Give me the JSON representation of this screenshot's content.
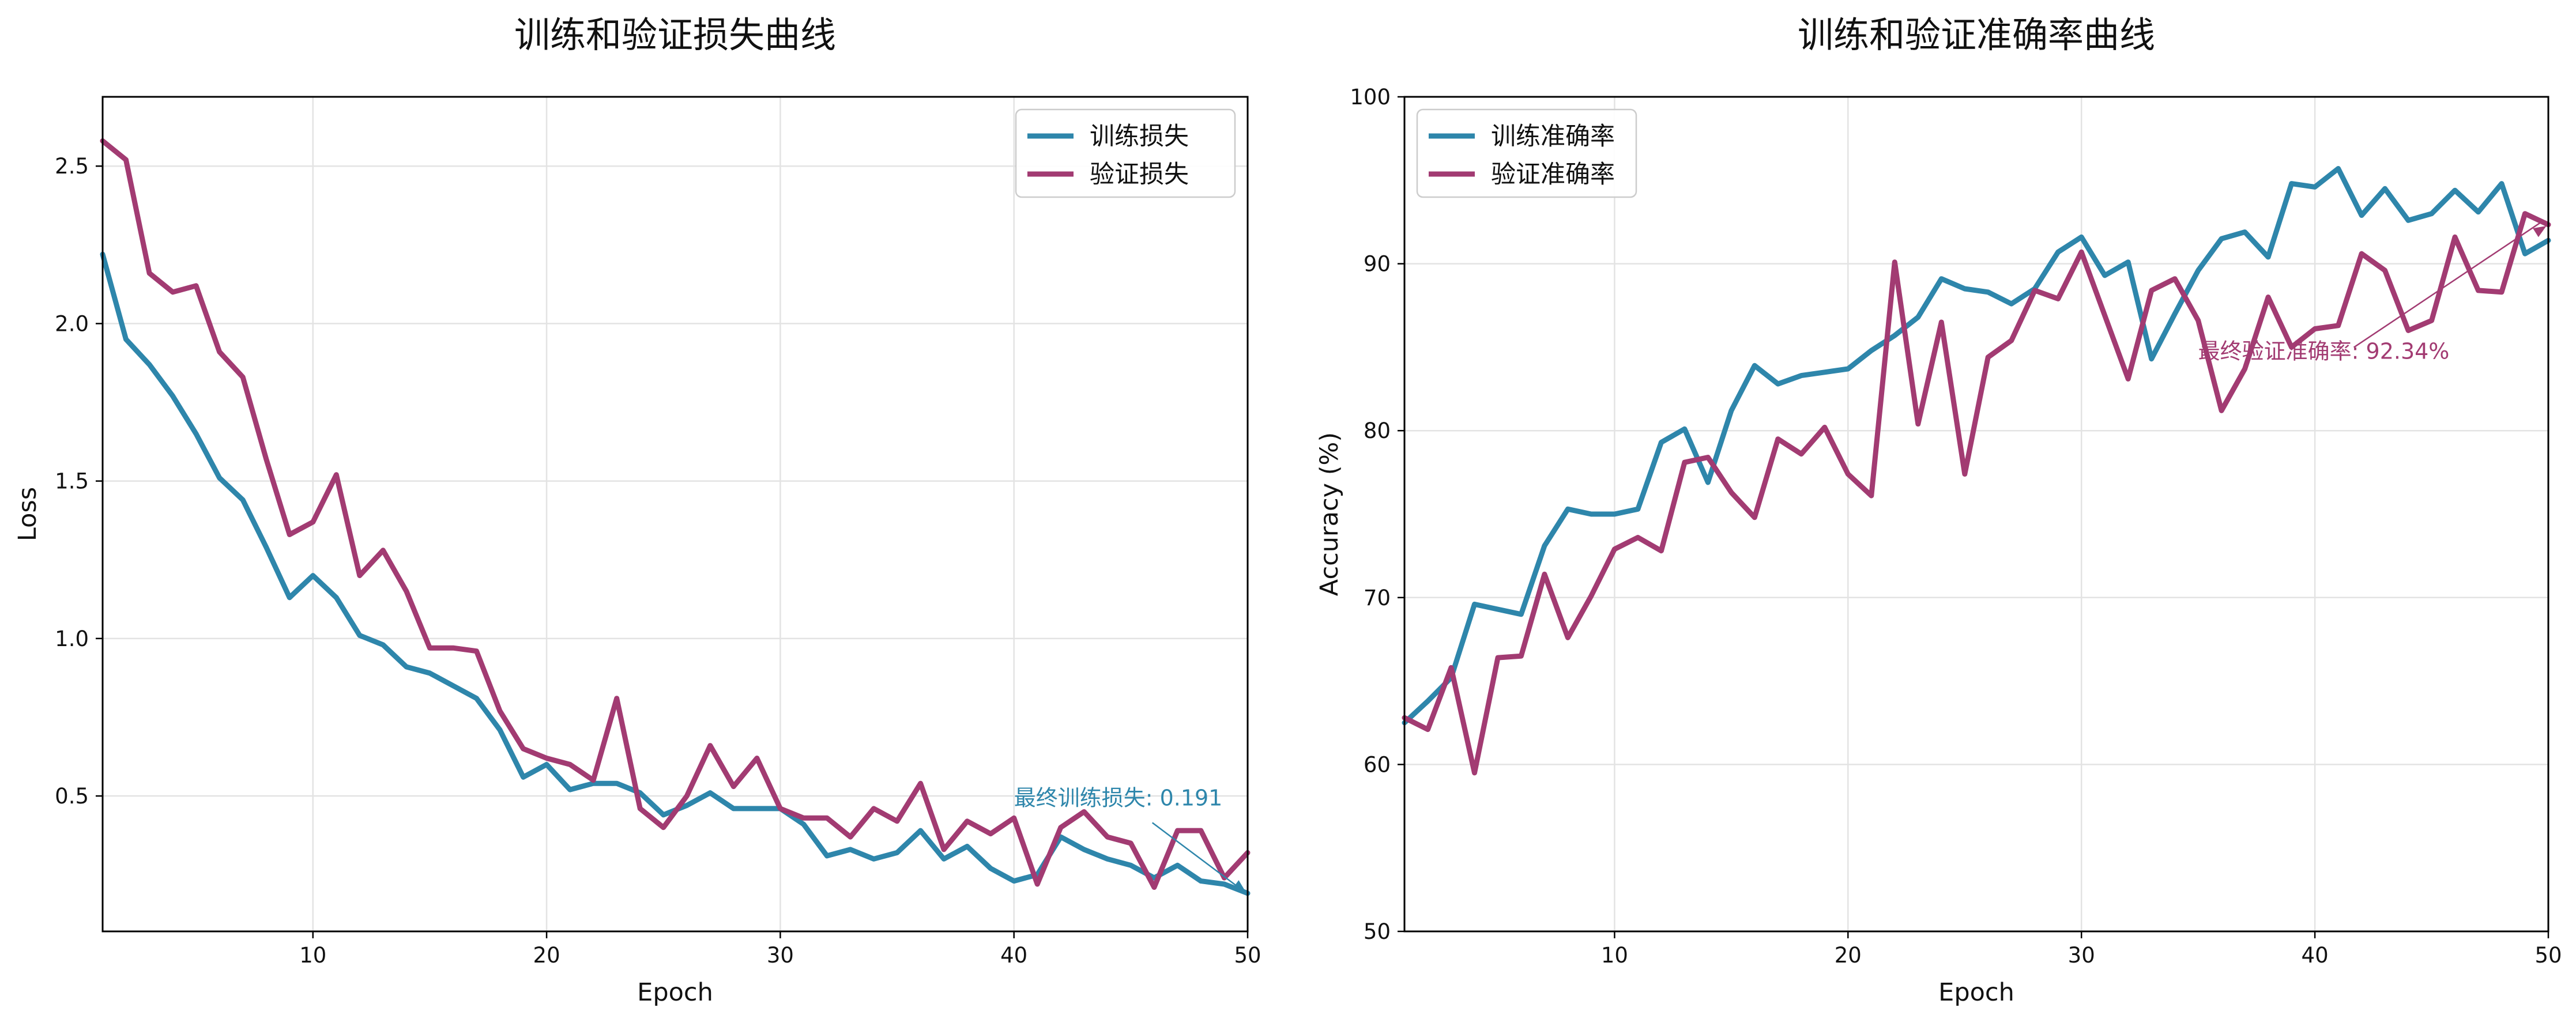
{
  "chart_data": [
    {
      "type": "line",
      "title": "训练和验证损失曲线",
      "xlabel": "Epoch",
      "ylabel": "Loss",
      "xlim": [
        1,
        50
      ],
      "ylim": [
        0.07,
        2.72
      ],
      "xticks": [
        10,
        20,
        30,
        40,
        50
      ],
      "yticks": [
        0.5,
        1.0,
        1.5,
        2.0,
        2.5
      ],
      "ytick_labels": [
        "0.5",
        "1.0",
        "1.5",
        "2.0",
        "2.5"
      ],
      "grid": true,
      "legend": "top-right",
      "x": [
        1,
        2,
        3,
        4,
        5,
        6,
        7,
        8,
        9,
        10,
        11,
        12,
        13,
        14,
        15,
        16,
        17,
        18,
        19,
        20,
        21,
        22,
        23,
        24,
        25,
        26,
        27,
        28,
        29,
        30,
        31,
        32,
        33,
        34,
        35,
        36,
        37,
        38,
        39,
        40,
        41,
        42,
        43,
        44,
        45,
        46,
        47,
        48,
        49,
        50
      ],
      "series": [
        {
          "name": "训练损失",
          "color": "#2e86ab",
          "values": [
            2.22,
            1.95,
            1.87,
            1.77,
            1.65,
            1.51,
            1.44,
            1.29,
            1.13,
            1.2,
            1.13,
            1.01,
            0.98,
            0.91,
            0.89,
            0.85,
            0.81,
            0.71,
            0.56,
            0.6,
            0.52,
            0.54,
            0.54,
            0.51,
            0.44,
            0.47,
            0.51,
            0.46,
            0.46,
            0.46,
            0.41,
            0.31,
            0.33,
            0.3,
            0.32,
            0.39,
            0.3,
            0.34,
            0.27,
            0.23,
            0.25,
            0.37,
            0.33,
            0.3,
            0.28,
            0.24,
            0.28,
            0.23,
            0.22,
            0.191
          ]
        },
        {
          "name": "验证损失",
          "color": "#a23b72",
          "values": [
            2.58,
            2.52,
            2.16,
            2.1,
            2.12,
            1.91,
            1.83,
            1.57,
            1.33,
            1.37,
            1.52,
            1.2,
            1.28,
            1.15,
            0.97,
            0.97,
            0.96,
            0.77,
            0.65,
            0.62,
            0.6,
            0.55,
            0.81,
            0.46,
            0.4,
            0.5,
            0.66,
            0.53,
            0.62,
            0.46,
            0.43,
            0.43,
            0.37,
            0.46,
            0.42,
            0.54,
            0.33,
            0.42,
            0.38,
            0.43,
            0.22,
            0.4,
            0.45,
            0.37,
            0.35,
            0.21,
            0.39,
            0.39,
            0.24,
            0.32
          ]
        }
      ],
      "annotation": {
        "text": "最终训练损失: 0.191",
        "xy": [
          50,
          0.191
        ],
        "xytext": [
          40,
          0.47
        ],
        "color": "#2e86ab"
      }
    },
    {
      "type": "line",
      "title": "训练和验证准确率曲线",
      "xlabel": "Epoch",
      "ylabel": "Accuracy (%)",
      "xlim": [
        1,
        50
      ],
      "ylim": [
        50,
        100
      ],
      "xticks": [
        10,
        20,
        30,
        40,
        50
      ],
      "yticks": [
        50,
        60,
        70,
        80,
        90,
        100
      ],
      "ytick_labels": [
        "50",
        "60",
        "70",
        "80",
        "90",
        "100"
      ],
      "grid": true,
      "legend": "top-left",
      "x": [
        1,
        2,
        3,
        4,
        5,
        6,
        7,
        8,
        9,
        10,
        11,
        12,
        13,
        14,
        15,
        16,
        17,
        18,
        19,
        20,
        21,
        22,
        23,
        24,
        25,
        26,
        27,
        28,
        29,
        30,
        31,
        32,
        33,
        34,
        35,
        36,
        37,
        38,
        39,
        40,
        41,
        42,
        43,
        44,
        45,
        46,
        47,
        48,
        49,
        50
      ],
      "series": [
        {
          "name": "训练准确率",
          "color": "#2e86ab",
          "values": [
            62.5,
            63.8,
            65.2,
            69.6,
            69.3,
            69.0,
            73.1,
            75.3,
            75.0,
            75.0,
            75.3,
            79.3,
            80.1,
            76.9,
            81.2,
            83.9,
            82.8,
            83.3,
            83.5,
            83.7,
            84.8,
            85.7,
            86.8,
            89.1,
            88.5,
            88.3,
            87.6,
            88.5,
            90.7,
            91.6,
            89.3,
            90.1,
            84.3,
            87.0,
            89.6,
            91.5,
            91.9,
            90.4,
            94.8,
            94.6,
            95.7,
            92.9,
            94.5,
            92.6,
            93.0,
            94.4,
            93.1,
            94.8,
            90.6,
            91.4
          ]
        },
        {
          "name": "验证准确率",
          "color": "#a23b72",
          "values": [
            62.8,
            62.1,
            65.8,
            59.5,
            66.4,
            66.5,
            71.4,
            67.6,
            70.1,
            72.9,
            73.6,
            72.8,
            78.1,
            78.4,
            76.3,
            74.8,
            79.5,
            78.6,
            80.2,
            77.4,
            76.1,
            90.1,
            80.4,
            86.5,
            77.4,
            84.4,
            85.4,
            88.4,
            87.9,
            90.7,
            86.9,
            83.1,
            88.4,
            89.1,
            86.6,
            81.2,
            83.7,
            88.0,
            85.0,
            86.1,
            86.3,
            90.6,
            89.6,
            86.0,
            86.6,
            91.6,
            88.4,
            88.3,
            93.0,
            92.34
          ]
        }
      ],
      "annotation": {
        "text": "最终验证准确率: 92.34%",
        "xy": [
          50,
          92.34
        ],
        "xytext": [
          35,
          84.3
        ],
        "color": "#a23b72"
      }
    }
  ]
}
